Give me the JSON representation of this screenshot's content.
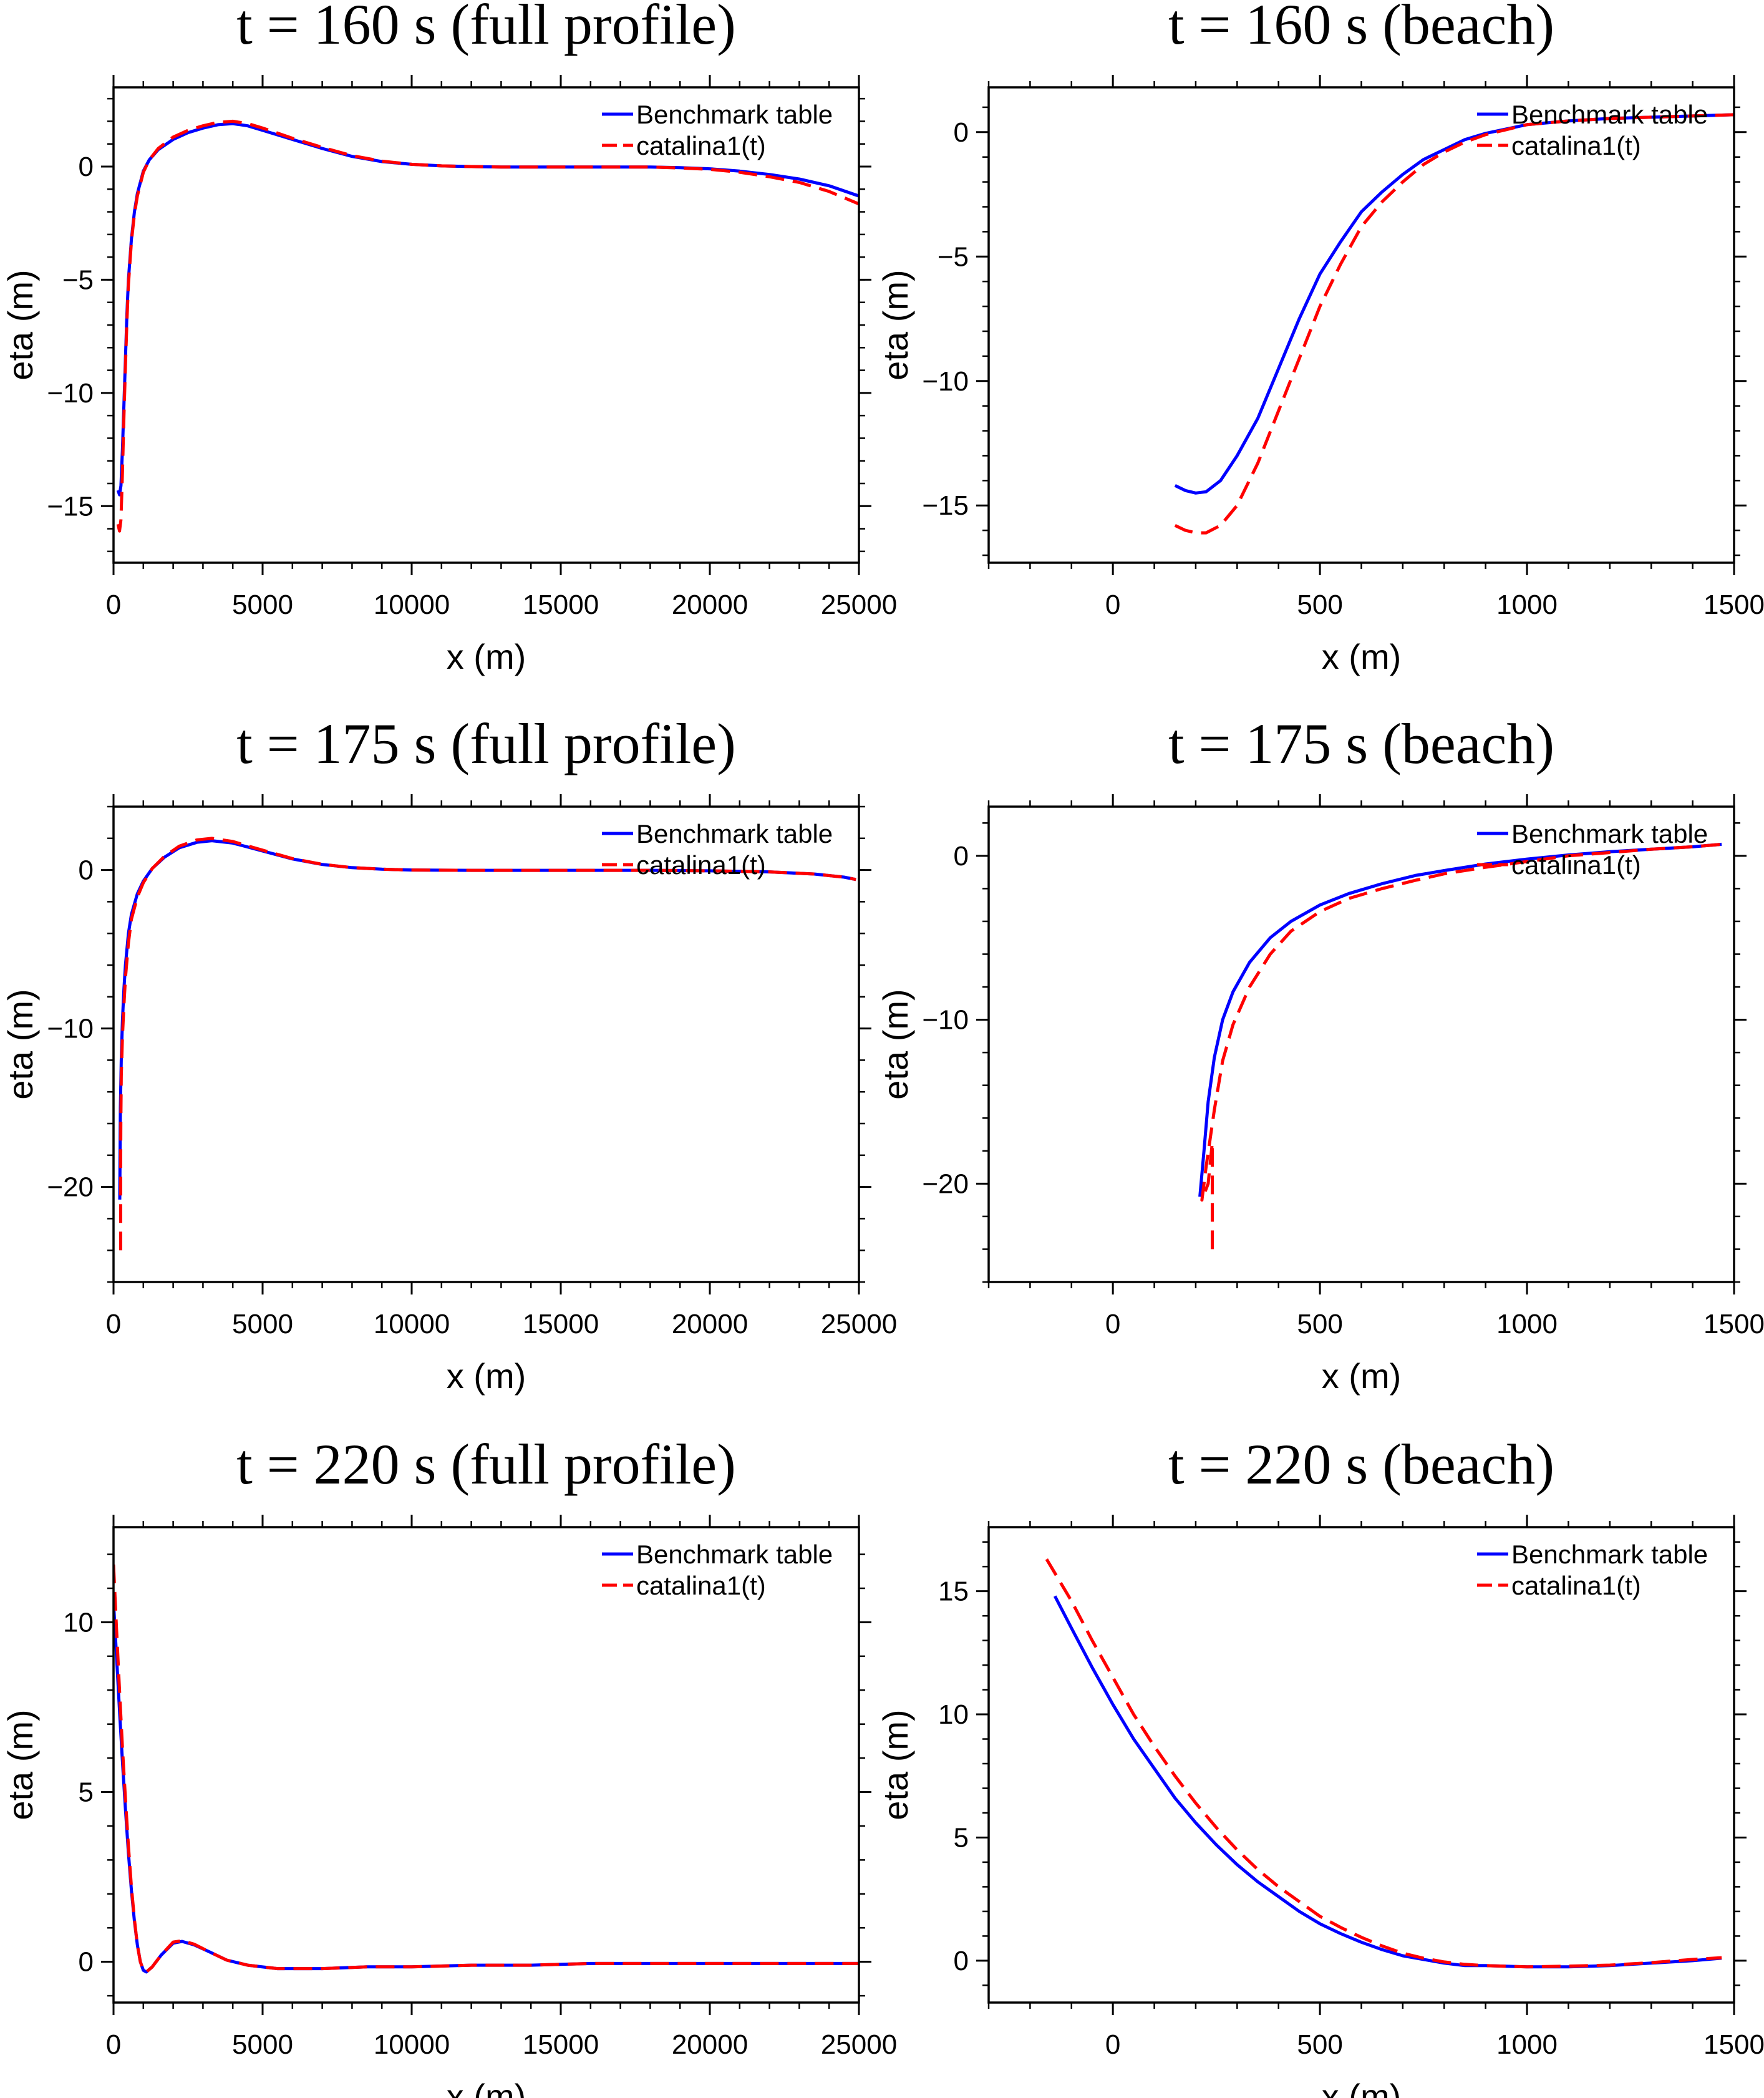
{
  "chart_data": [
    {
      "type": "line",
      "title": "t = 160 s (full profile)",
      "xlabel": "x (m)",
      "ylabel": "eta (m)",
      "xlim": [
        0,
        25000
      ],
      "ylim": [
        -17.5,
        3.5
      ],
      "xticks": [
        0,
        5000,
        10000,
        15000,
        20000,
        25000
      ],
      "yticks": [
        0,
        -5,
        -10,
        -15
      ],
      "xtick_labels": [
        "0",
        "5000",
        "10000",
        "15000",
        "20000",
        "25000"
      ],
      "ytick_labels": [
        "0",
        "−5",
        "−10",
        "−15"
      ],
      "legend": "top-right",
      "series": [
        {
          "name": "Benchmark table",
          "color": "#0000ff",
          "dash": "solid",
          "x": [
            150,
            200,
            250,
            300,
            350,
            400,
            450,
            500,
            600,
            700,
            800,
            1000,
            1200,
            1500,
            2000,
            2500,
            3000,
            3500,
            4000,
            4500,
            5000,
            6000,
            7000,
            8000,
            9000,
            10000,
            11000,
            12000,
            13000,
            14000,
            15000,
            16000,
            17000,
            18000,
            19000,
            20000,
            21000,
            22000,
            23000,
            24000,
            25000
          ],
          "y": [
            -14.3,
            -14.5,
            -14.1,
            -12.5,
            -10.5,
            -8.5,
            -6.5,
            -5.0,
            -3.2,
            -2.0,
            -1.2,
            -0.2,
            0.3,
            0.75,
            1.2,
            1.5,
            1.7,
            1.85,
            1.9,
            1.8,
            1.6,
            1.2,
            0.8,
            0.45,
            0.22,
            0.1,
            0.03,
            0.0,
            -0.02,
            -0.02,
            -0.02,
            -0.02,
            -0.02,
            -0.02,
            -0.05,
            -0.1,
            -0.2,
            -0.35,
            -0.55,
            -0.85,
            -1.3
          ]
        },
        {
          "name": "catalina1(t)",
          "color": "#ff0000",
          "dash": "dashed",
          "x": [
            150,
            200,
            250,
            300,
            350,
            400,
            450,
            500,
            600,
            700,
            800,
            1000,
            1200,
            1500,
            2000,
            2500,
            3000,
            3500,
            4000,
            4500,
            5000,
            6000,
            7000,
            8000,
            9000,
            10000,
            11000,
            12000,
            13000,
            14000,
            15000,
            16000,
            17000,
            18000,
            19000,
            20000,
            21000,
            22000,
            23000,
            24000,
            25000
          ],
          "y": [
            -15.8,
            -16.1,
            -15.6,
            -13.5,
            -11.0,
            -8.8,
            -6.8,
            -5.2,
            -3.3,
            -2.1,
            -1.3,
            -0.25,
            0.3,
            0.8,
            1.3,
            1.6,
            1.8,
            1.95,
            2.0,
            1.9,
            1.7,
            1.25,
            0.85,
            0.48,
            0.24,
            0.1,
            0.03,
            0.0,
            -0.02,
            -0.02,
            -0.02,
            -0.02,
            -0.02,
            -0.02,
            -0.06,
            -0.12,
            -0.25,
            -0.45,
            -0.7,
            -1.1,
            -1.65
          ]
        }
      ]
    },
    {
      "type": "line",
      "title": "t = 160 s (beach)",
      "xlabel": "x (m)",
      "ylabel": "eta (m)",
      "xlim": [
        -300,
        1500
      ],
      "ylim": [
        -17.3,
        1.8
      ],
      "xticks": [
        0,
        500,
        1000,
        1500
      ],
      "yticks": [
        0,
        -5,
        -10,
        -15
      ],
      "xtick_labels": [
        "0",
        "500",
        "1000",
        "1500"
      ],
      "ytick_labels": [
        "0",
        "−5",
        "−10",
        "−15"
      ],
      "legend": "top-right",
      "series": [
        {
          "name": "Benchmark table",
          "color": "#0000ff",
          "dash": "solid",
          "x": [
            150,
            175,
            200,
            225,
            260,
            300,
            350,
            400,
            450,
            500,
            550,
            600,
            650,
            700,
            750,
            800,
            850,
            900,
            1000,
            1100,
            1200,
            1300,
            1400,
            1500
          ],
          "y": [
            -14.2,
            -14.4,
            -14.5,
            -14.45,
            -14.0,
            -13.0,
            -11.5,
            -9.5,
            -7.5,
            -5.7,
            -4.4,
            -3.2,
            -2.4,
            -1.7,
            -1.1,
            -0.7,
            -0.3,
            -0.05,
            0.3,
            0.45,
            0.55,
            0.6,
            0.65,
            0.7
          ]
        },
        {
          "name": "catalina1(t)",
          "color": "#ff0000",
          "dash": "dashed",
          "x": [
            150,
            175,
            200,
            225,
            260,
            300,
            350,
            400,
            450,
            500,
            550,
            600,
            650,
            700,
            750,
            800,
            850,
            900,
            1000,
            1100,
            1200,
            1300,
            1400,
            1500
          ],
          "y": [
            -15.8,
            -16.0,
            -16.1,
            -16.1,
            -15.8,
            -15.0,
            -13.3,
            -11.2,
            -9.1,
            -7.0,
            -5.3,
            -3.8,
            -2.8,
            -2.0,
            -1.3,
            -0.8,
            -0.4,
            -0.1,
            0.3,
            0.45,
            0.55,
            0.6,
            0.65,
            0.7
          ]
        }
      ]
    },
    {
      "type": "line",
      "title": "t = 175 s (full profile)",
      "xlabel": "x (m)",
      "ylabel": "eta (m)",
      "xlim": [
        0,
        25000
      ],
      "ylim": [
        -26,
        4
      ],
      "xticks": [
        0,
        5000,
        10000,
        15000,
        20000,
        25000
      ],
      "yticks": [
        0,
        -10,
        -20
      ],
      "xtick_labels": [
        "0",
        "5000",
        "10000",
        "15000",
        "20000",
        "25000"
      ],
      "ytick_labels": [
        "0",
        "−10",
        "−20"
      ],
      "legend": "top-right",
      "series": [
        {
          "name": "Benchmark table",
          "color": "#0000ff",
          "dash": "solid",
          "x": [
            210,
            230,
            260,
            300,
            350,
            400,
            500,
            600,
            800,
            1000,
            1300,
            1700,
            2200,
            2800,
            3300,
            4000,
            5000,
            6000,
            7000,
            8000,
            9000,
            10000,
            12000,
            15000,
            18000,
            20000,
            22000,
            23500,
            24500,
            24900
          ],
          "y": [
            -20.8,
            -15,
            -12,
            -9.5,
            -7.5,
            -6.0,
            -4.0,
            -2.8,
            -1.5,
            -0.7,
            0.1,
            0.8,
            1.4,
            1.75,
            1.85,
            1.7,
            1.2,
            0.7,
            0.35,
            0.15,
            0.05,
            0.0,
            -0.02,
            -0.02,
            -0.02,
            -0.05,
            -0.12,
            -0.25,
            -0.45,
            -0.6
          ]
        },
        {
          "name": "catalina1(t)",
          "color": "#ff0000",
          "dash": "dashed",
          "x": [
            240,
            240,
            245,
            260,
            300,
            350,
            400,
            500,
            600,
            800,
            1000,
            1300,
            1700,
            2200,
            2800,
            3300,
            4000,
            5000,
            6000,
            7000,
            8000,
            9000,
            10000,
            12000,
            15000,
            18000,
            20000,
            22000,
            23500,
            24500,
            24900
          ],
          "y": [
            -24.0,
            -18,
            -16,
            -13,
            -10.5,
            -8.5,
            -6.8,
            -4.6,
            -3.1,
            -1.7,
            -0.8,
            0.1,
            0.85,
            1.5,
            1.9,
            2.0,
            1.8,
            1.25,
            0.72,
            0.36,
            0.15,
            0.05,
            0.0,
            -0.02,
            -0.02,
            -0.02,
            -0.05,
            -0.12,
            -0.25,
            -0.45,
            -0.6
          ]
        }
      ]
    },
    {
      "type": "line",
      "title": "t = 175 s (beach)",
      "xlabel": "x (m)",
      "ylabel": "eta (m)",
      "xlim": [
        -300,
        1500
      ],
      "ylim": [
        -26,
        3
      ],
      "xticks": [
        0,
        500,
        1000,
        1500
      ],
      "yticks": [
        0,
        -10,
        -20
      ],
      "xtick_labels": [
        "0",
        "500",
        "1000",
        "1500"
      ],
      "ytick_labels": [
        "0",
        "−10",
        "−20"
      ],
      "legend": "top-right",
      "series": [
        {
          "name": "Benchmark table",
          "color": "#0000ff",
          "dash": "solid",
          "x": [
            210,
            220,
            230,
            245,
            265,
            290,
            330,
            380,
            430,
            500,
            570,
            650,
            730,
            800,
            900,
            1000,
            1100,
            1200,
            1300,
            1400,
            1470
          ],
          "y": [
            -20.8,
            -18.0,
            -15.0,
            -12.3,
            -10.0,
            -8.3,
            -6.5,
            -5.0,
            -4.0,
            -3.0,
            -2.3,
            -1.7,
            -1.2,
            -0.9,
            -0.5,
            -0.2,
            0.05,
            0.25,
            0.4,
            0.55,
            0.7
          ]
        },
        {
          "name": "catalina1(t)",
          "color": "#ff0000",
          "dash": "dashed",
          "x": [
            240,
            240,
            230,
            215,
            225,
            245,
            265,
            290,
            330,
            380,
            430,
            500,
            570,
            650,
            730,
            800,
            900,
            1000,
            1100,
            1200,
            1300,
            1400,
            1470
          ],
          "y": [
            -24.0,
            -17.5,
            -20.0,
            -21.0,
            -19.0,
            -15.5,
            -12.5,
            -10.3,
            -8.0,
            -6.0,
            -4.6,
            -3.4,
            -2.6,
            -2.0,
            -1.5,
            -1.1,
            -0.7,
            -0.35,
            0.0,
            0.2,
            0.4,
            0.55,
            0.7
          ]
        }
      ]
    },
    {
      "type": "line",
      "title": "t = 220 s (full profile)",
      "xlabel": "x (m)",
      "ylabel": "eta (m)",
      "xlim": [
        0,
        25000
      ],
      "ylim": [
        -1.2,
        12.8
      ],
      "xticks": [
        0,
        5000,
        10000,
        15000,
        20000,
        25000
      ],
      "yticks": [
        0,
        5,
        10
      ],
      "xtick_labels": [
        "0",
        "5000",
        "10000",
        "15000",
        "20000",
        "25000"
      ],
      "ytick_labels": [
        "0",
        "5",
        "10"
      ],
      "legend": "top-right",
      "series": [
        {
          "name": "Benchmark table",
          "color": "#0000ff",
          "dash": "solid",
          "x": [
            0,
            100,
            200,
            300,
            400,
            500,
            600,
            700,
            800,
            900,
            1000,
            1100,
            1300,
            1600,
            2000,
            2300,
            2700,
            3200,
            3800,
            4500,
            5500,
            7000,
            8500,
            10000,
            12000,
            14000,
            16000,
            18000,
            20000,
            22000,
            24000,
            25000
          ],
          "y": [
            10.6,
            9.0,
            7.4,
            5.9,
            4.5,
            3.2,
            2.1,
            1.2,
            0.5,
            0.0,
            -0.25,
            -0.3,
            -0.15,
            0.2,
            0.55,
            0.6,
            0.5,
            0.3,
            0.05,
            -0.1,
            -0.2,
            -0.2,
            -0.15,
            -0.15,
            -0.1,
            -0.1,
            -0.05,
            -0.05,
            -0.05,
            -0.05,
            -0.05,
            -0.05
          ]
        },
        {
          "name": "catalina1(t)",
          "color": "#ff0000",
          "dash": "dashed",
          "x": [
            0,
            100,
            200,
            300,
            400,
            500,
            600,
            700,
            800,
            900,
            1000,
            1100,
            1300,
            1600,
            2000,
            2300,
            2700,
            3200,
            3800,
            4500,
            5500,
            7000,
            8500,
            10000,
            12000,
            14000,
            16000,
            18000,
            20000,
            22000,
            24000,
            25000
          ],
          "y": [
            11.7,
            9.8,
            8.0,
            6.3,
            4.8,
            3.4,
            2.2,
            1.25,
            0.5,
            0.0,
            -0.25,
            -0.3,
            -0.15,
            0.2,
            0.58,
            0.62,
            0.52,
            0.3,
            0.05,
            -0.1,
            -0.2,
            -0.2,
            -0.15,
            -0.15,
            -0.1,
            -0.1,
            -0.05,
            -0.05,
            -0.05,
            -0.05,
            -0.05,
            -0.05
          ]
        }
      ]
    },
    {
      "type": "line",
      "title": "t = 220 s (beach)",
      "xlabel": "x (m)",
      "ylabel": "eta (m)",
      "xlim": [
        -300,
        1500
      ],
      "ylim": [
        -1.7,
        17.6
      ],
      "xticks": [
        0,
        500,
        1000,
        1500
      ],
      "yticks": [
        0,
        5,
        10,
        15
      ],
      "xtick_labels": [
        "0",
        "500",
        "1000",
        "1500"
      ],
      "ytick_labels": [
        "0",
        "5",
        "10",
        "15"
      ],
      "legend": "top-right",
      "series": [
        {
          "name": "Benchmark table",
          "color": "#0000ff",
          "dash": "solid",
          "x": [
            -140,
            -100,
            -50,
            0,
            50,
            100,
            150,
            200,
            250,
            300,
            350,
            400,
            450,
            500,
            550,
            600,
            650,
            700,
            750,
            800,
            850,
            900,
            1000,
            1100,
            1200,
            1300,
            1400,
            1470
          ],
          "y": [
            14.8,
            13.5,
            11.9,
            10.4,
            9.0,
            7.8,
            6.6,
            5.6,
            4.7,
            3.9,
            3.2,
            2.6,
            2.0,
            1.5,
            1.1,
            0.75,
            0.45,
            0.2,
            0.05,
            -0.1,
            -0.2,
            -0.2,
            -0.25,
            -0.25,
            -0.2,
            -0.1,
            0.0,
            0.1
          ]
        },
        {
          "name": "catalina1(t)",
          "color": "#ff0000",
          "dash": "dashed",
          "x": [
            -160,
            -100,
            -50,
            0,
            50,
            100,
            150,
            200,
            250,
            300,
            350,
            400,
            450,
            500,
            550,
            600,
            650,
            700,
            750,
            800,
            850,
            900,
            1000,
            1100,
            1200,
            1300,
            1400,
            1470
          ],
          "y": [
            16.3,
            14.6,
            13.0,
            11.5,
            10.0,
            8.7,
            7.5,
            6.4,
            5.4,
            4.5,
            3.7,
            3.0,
            2.4,
            1.8,
            1.35,
            0.95,
            0.6,
            0.3,
            0.1,
            -0.05,
            -0.15,
            -0.2,
            -0.25,
            -0.22,
            -0.18,
            -0.08,
            0.05,
            0.12
          ]
        }
      ]
    }
  ]
}
